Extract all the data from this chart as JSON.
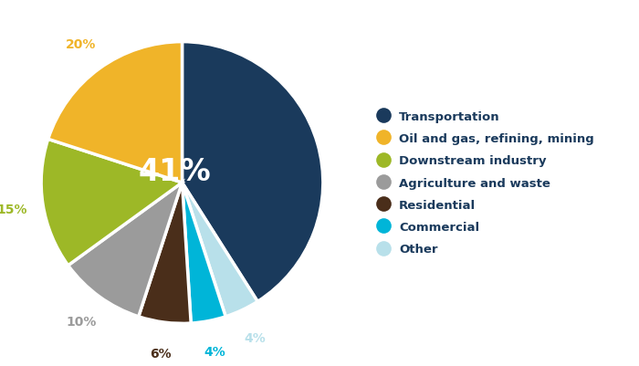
{
  "labels": [
    "Transportation",
    "Oil and gas, refining, mining",
    "Downstream industry",
    "Agriculture and waste",
    "Residential",
    "Commercial",
    "Other"
  ],
  "values": [
    41,
    20,
    15,
    10,
    6,
    4,
    4
  ],
  "colors": [
    "#1a3a5c",
    "#f0b429",
    "#9db827",
    "#9b9b9b",
    "#4a2e1a",
    "#00b5d8",
    "#b8e0ea"
  ],
  "legend_text_color": "#1a3a5c",
  "background_color": "#ffffff",
  "pct_label_colors": {
    "Transportation": "#ffffff",
    "Oil and gas, refining, mining": "#f0b429",
    "Downstream industry": "#9db827",
    "Agriculture and waste": "#9b9b9b",
    "Residential": "#4a2e1a",
    "Commercial": "#00b5d8",
    "Other": "#b8e0ea"
  }
}
